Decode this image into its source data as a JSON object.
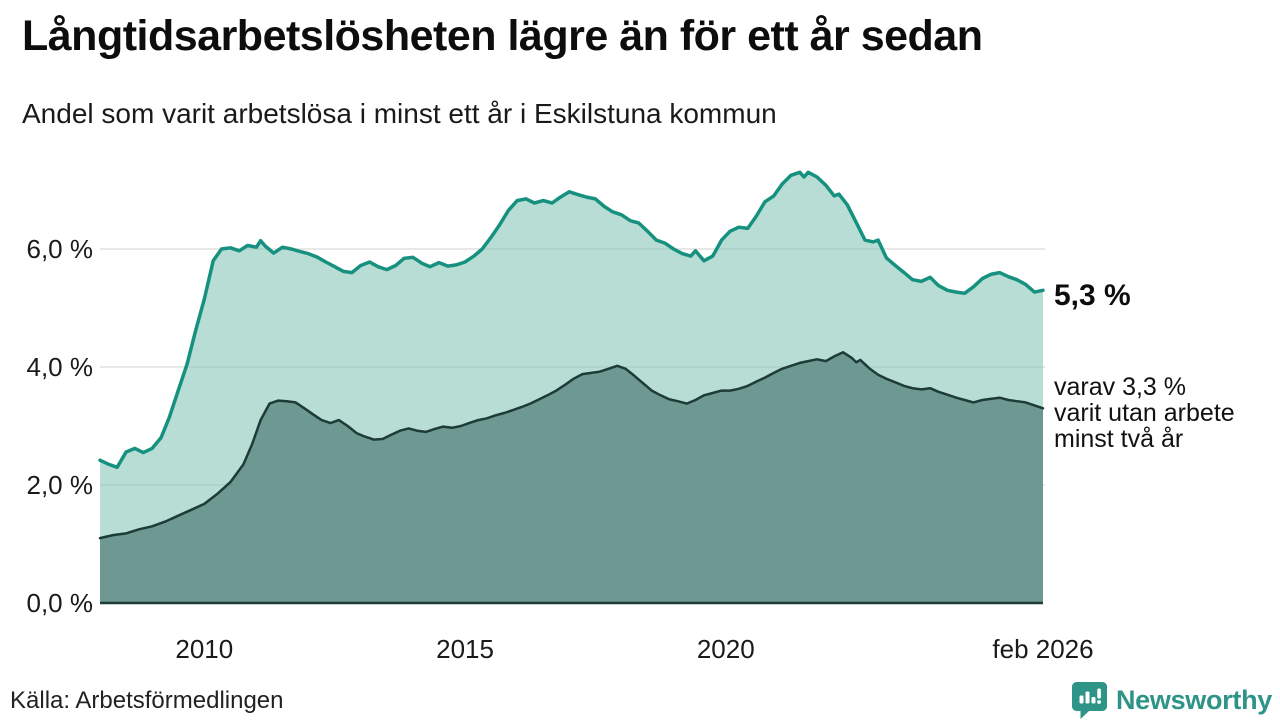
{
  "header": {
    "title": "Långtidsarbetslösheten lägre än för ett år sedan",
    "subtitle": "Andel som varit arbetslösa i minst ett år i Eskilstuna kommun"
  },
  "annotations": {
    "latest_total": "5,3 %",
    "sub_line1": "varav 3,3 %",
    "sub_line2": "varit utan arbete",
    "sub_line3": "minst två år"
  },
  "footer": {
    "source": "Källa: Arbetsförmedlingen",
    "brand": "Newsworthy"
  },
  "colors": {
    "total_line": "#17917f",
    "total_fill": "rgba(140,200,188,0.62)",
    "two_year_line": "#1d3b37",
    "two_year_fill": "rgba(94,138,132,0.82)",
    "grid": "#e0e0e0",
    "axis_text": "#1a1a1a",
    "brand_teal": "#2f9488"
  },
  "chart_data": {
    "type": "area",
    "title": "Långtidsarbetslösheten lägre än för ett år sedan",
    "subtitle": "Andel som varit arbetslösa i minst ett år i Eskilstuna kommun",
    "unit": "%",
    "x_range": [
      2008,
      2026.083
    ],
    "y_range": [
      0,
      7.6
    ],
    "grid": true,
    "legend_position": "right-annotations",
    "x_ticks": [
      {
        "x": 2010,
        "label": "2010"
      },
      {
        "x": 2015,
        "label": "2015"
      },
      {
        "x": 2020,
        "label": "2020"
      },
      {
        "x": 2026.083,
        "label": "feb 2026"
      }
    ],
    "y_ticks": [
      {
        "v": 0,
        "label": "0,0 %"
      },
      {
        "v": 2,
        "label": "2,0 %"
      },
      {
        "v": 4,
        "label": "4,0 %"
      },
      {
        "v": 6,
        "label": "6,0 %"
      }
    ],
    "series": [
      {
        "name": "Andel arbetslösa minst ett år",
        "latest_label": "5,3 %",
        "latest_value": 5.3,
        "points": [
          [
            2008.0,
            2.42
          ],
          [
            2008.17,
            2.35
          ],
          [
            2008.33,
            2.3
          ],
          [
            2008.5,
            2.56
          ],
          [
            2008.67,
            2.62
          ],
          [
            2008.83,
            2.55
          ],
          [
            2009.0,
            2.62
          ],
          [
            2009.17,
            2.8
          ],
          [
            2009.33,
            3.15
          ],
          [
            2009.5,
            3.6
          ],
          [
            2009.67,
            4.05
          ],
          [
            2009.83,
            4.6
          ],
          [
            2010.0,
            5.15
          ],
          [
            2010.17,
            5.8
          ],
          [
            2010.33,
            6.0
          ],
          [
            2010.5,
            6.02
          ],
          [
            2010.67,
            5.97
          ],
          [
            2010.83,
            6.06
          ],
          [
            2011.0,
            6.03
          ],
          [
            2011.08,
            6.14
          ],
          [
            2011.17,
            6.05
          ],
          [
            2011.33,
            5.93
          ],
          [
            2011.5,
            6.03
          ],
          [
            2011.67,
            6.0
          ],
          [
            2011.83,
            5.96
          ],
          [
            2012.0,
            5.92
          ],
          [
            2012.17,
            5.86
          ],
          [
            2012.33,
            5.78
          ],
          [
            2012.5,
            5.7
          ],
          [
            2012.67,
            5.62
          ],
          [
            2012.83,
            5.6
          ],
          [
            2013.0,
            5.72
          ],
          [
            2013.17,
            5.78
          ],
          [
            2013.33,
            5.7
          ],
          [
            2013.5,
            5.65
          ],
          [
            2013.67,
            5.72
          ],
          [
            2013.83,
            5.84
          ],
          [
            2014.0,
            5.86
          ],
          [
            2014.17,
            5.76
          ],
          [
            2014.33,
            5.7
          ],
          [
            2014.5,
            5.77
          ],
          [
            2014.67,
            5.71
          ],
          [
            2014.83,
            5.73
          ],
          [
            2015.0,
            5.78
          ],
          [
            2015.17,
            5.88
          ],
          [
            2015.33,
            6.0
          ],
          [
            2015.5,
            6.2
          ],
          [
            2015.67,
            6.42
          ],
          [
            2015.83,
            6.65
          ],
          [
            2016.0,
            6.82
          ],
          [
            2016.17,
            6.85
          ],
          [
            2016.33,
            6.78
          ],
          [
            2016.5,
            6.82
          ],
          [
            2016.67,
            6.78
          ],
          [
            2016.83,
            6.88
          ],
          [
            2017.0,
            6.97
          ],
          [
            2017.17,
            6.92
          ],
          [
            2017.33,
            6.88
          ],
          [
            2017.5,
            6.85
          ],
          [
            2017.67,
            6.72
          ],
          [
            2017.83,
            6.63
          ],
          [
            2018.0,
            6.58
          ],
          [
            2018.17,
            6.48
          ],
          [
            2018.33,
            6.44
          ],
          [
            2018.5,
            6.3
          ],
          [
            2018.67,
            6.15
          ],
          [
            2018.83,
            6.1
          ],
          [
            2019.0,
            6.0
          ],
          [
            2019.17,
            5.92
          ],
          [
            2019.33,
            5.88
          ],
          [
            2019.42,
            5.97
          ],
          [
            2019.58,
            5.8
          ],
          [
            2019.75,
            5.88
          ],
          [
            2019.92,
            6.15
          ],
          [
            2020.08,
            6.3
          ],
          [
            2020.25,
            6.37
          ],
          [
            2020.42,
            6.35
          ],
          [
            2020.58,
            6.55
          ],
          [
            2020.75,
            6.8
          ],
          [
            2020.92,
            6.9
          ],
          [
            2021.08,
            7.1
          ],
          [
            2021.25,
            7.25
          ],
          [
            2021.42,
            7.3
          ],
          [
            2021.5,
            7.22
          ],
          [
            2021.58,
            7.3
          ],
          [
            2021.75,
            7.22
          ],
          [
            2021.92,
            7.08
          ],
          [
            2022.08,
            6.9
          ],
          [
            2022.17,
            6.93
          ],
          [
            2022.33,
            6.75
          ],
          [
            2022.5,
            6.45
          ],
          [
            2022.67,
            6.15
          ],
          [
            2022.83,
            6.12
          ],
          [
            2022.92,
            6.15
          ],
          [
            2023.08,
            5.85
          ],
          [
            2023.25,
            5.72
          ],
          [
            2023.42,
            5.6
          ],
          [
            2023.58,
            5.48
          ],
          [
            2023.75,
            5.45
          ],
          [
            2023.92,
            5.52
          ],
          [
            2024.08,
            5.38
          ],
          [
            2024.25,
            5.3
          ],
          [
            2024.42,
            5.27
          ],
          [
            2024.58,
            5.25
          ],
          [
            2024.75,
            5.36
          ],
          [
            2024.92,
            5.5
          ],
          [
            2025.08,
            5.57
          ],
          [
            2025.25,
            5.6
          ],
          [
            2025.42,
            5.53
          ],
          [
            2025.58,
            5.48
          ],
          [
            2025.75,
            5.4
          ],
          [
            2025.92,
            5.27
          ],
          [
            2026.083,
            5.3
          ]
        ]
      },
      {
        "name": "varav utan arbete minst två år",
        "latest_label": "varav 3,3 % varit utan arbete minst två år",
        "latest_value": 3.3,
        "points": [
          [
            2008.0,
            1.1
          ],
          [
            2008.25,
            1.15
          ],
          [
            2008.5,
            1.18
          ],
          [
            2008.75,
            1.25
          ],
          [
            2009.0,
            1.3
          ],
          [
            2009.25,
            1.38
          ],
          [
            2009.5,
            1.48
          ],
          [
            2009.75,
            1.58
          ],
          [
            2010.0,
            1.68
          ],
          [
            2010.25,
            1.85
          ],
          [
            2010.5,
            2.05
          ],
          [
            2010.75,
            2.35
          ],
          [
            2010.92,
            2.7
          ],
          [
            2011.08,
            3.1
          ],
          [
            2011.25,
            3.38
          ],
          [
            2011.42,
            3.43
          ],
          [
            2011.58,
            3.42
          ],
          [
            2011.75,
            3.4
          ],
          [
            2011.92,
            3.3
          ],
          [
            2012.08,
            3.2
          ],
          [
            2012.25,
            3.1
          ],
          [
            2012.42,
            3.05
          ],
          [
            2012.58,
            3.1
          ],
          [
            2012.75,
            3.0
          ],
          [
            2012.92,
            2.88
          ],
          [
            2013.08,
            2.82
          ],
          [
            2013.25,
            2.77
          ],
          [
            2013.42,
            2.78
          ],
          [
            2013.58,
            2.85
          ],
          [
            2013.75,
            2.92
          ],
          [
            2013.92,
            2.96
          ],
          [
            2014.08,
            2.92
          ],
          [
            2014.25,
            2.9
          ],
          [
            2014.42,
            2.95
          ],
          [
            2014.58,
            2.99
          ],
          [
            2014.75,
            2.97
          ],
          [
            2014.92,
            3.0
          ],
          [
            2015.08,
            3.05
          ],
          [
            2015.25,
            3.1
          ],
          [
            2015.42,
            3.13
          ],
          [
            2015.58,
            3.18
          ],
          [
            2015.75,
            3.22
          ],
          [
            2015.92,
            3.27
          ],
          [
            2016.08,
            3.32
          ],
          [
            2016.25,
            3.38
          ],
          [
            2016.42,
            3.45
          ],
          [
            2016.58,
            3.52
          ],
          [
            2016.75,
            3.6
          ],
          [
            2016.92,
            3.7
          ],
          [
            2017.08,
            3.8
          ],
          [
            2017.25,
            3.88
          ],
          [
            2017.42,
            3.9
          ],
          [
            2017.58,
            3.92
          ],
          [
            2017.75,
            3.97
          ],
          [
            2017.92,
            4.02
          ],
          [
            2018.08,
            3.97
          ],
          [
            2018.25,
            3.85
          ],
          [
            2018.42,
            3.72
          ],
          [
            2018.58,
            3.6
          ],
          [
            2018.75,
            3.52
          ],
          [
            2018.92,
            3.45
          ],
          [
            2019.08,
            3.42
          ],
          [
            2019.25,
            3.38
          ],
          [
            2019.42,
            3.44
          ],
          [
            2019.58,
            3.52
          ],
          [
            2019.75,
            3.56
          ],
          [
            2019.92,
            3.6
          ],
          [
            2020.08,
            3.6
          ],
          [
            2020.25,
            3.63
          ],
          [
            2020.42,
            3.68
          ],
          [
            2020.58,
            3.75
          ],
          [
            2020.75,
            3.82
          ],
          [
            2020.92,
            3.9
          ],
          [
            2021.08,
            3.97
          ],
          [
            2021.25,
            4.02
          ],
          [
            2021.42,
            4.07
          ],
          [
            2021.58,
            4.1
          ],
          [
            2021.75,
            4.13
          ],
          [
            2021.92,
            4.1
          ],
          [
            2022.08,
            4.18
          ],
          [
            2022.25,
            4.25
          ],
          [
            2022.42,
            4.15
          ],
          [
            2022.5,
            4.08
          ],
          [
            2022.58,
            4.12
          ],
          [
            2022.75,
            3.98
          ],
          [
            2022.92,
            3.87
          ],
          [
            2023.08,
            3.8
          ],
          [
            2023.25,
            3.74
          ],
          [
            2023.42,
            3.68
          ],
          [
            2023.58,
            3.64
          ],
          [
            2023.75,
            3.62
          ],
          [
            2023.92,
            3.64
          ],
          [
            2024.08,
            3.58
          ],
          [
            2024.25,
            3.53
          ],
          [
            2024.42,
            3.48
          ],
          [
            2024.58,
            3.44
          ],
          [
            2024.75,
            3.4
          ],
          [
            2024.92,
            3.44
          ],
          [
            2025.08,
            3.46
          ],
          [
            2025.25,
            3.48
          ],
          [
            2025.42,
            3.44
          ],
          [
            2025.58,
            3.42
          ],
          [
            2025.75,
            3.4
          ],
          [
            2025.92,
            3.35
          ],
          [
            2026.083,
            3.3
          ]
        ]
      }
    ]
  }
}
